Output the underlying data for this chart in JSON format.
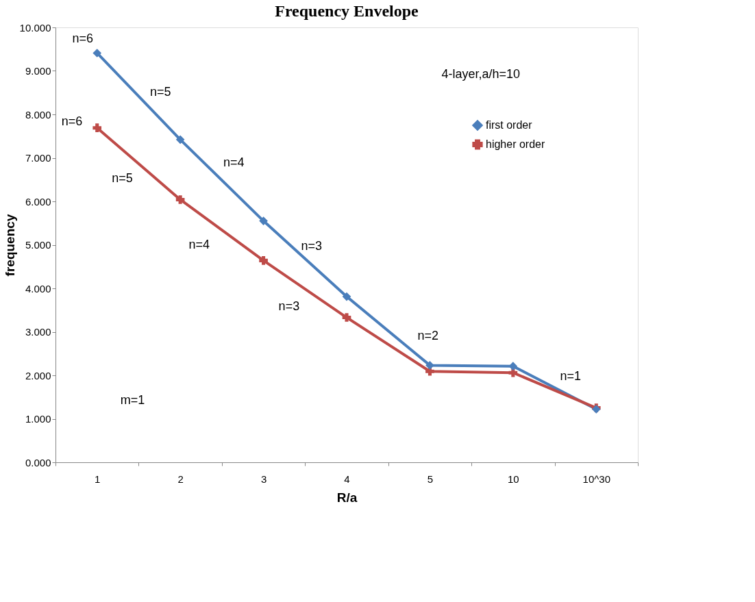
{
  "chart_data": {
    "type": "line",
    "title": "Frequency Envelope",
    "xlabel": "R/a",
    "ylabel": "frequency",
    "categories": [
      "1",
      "2",
      "3",
      "4",
      "5",
      "10",
      "10^30"
    ],
    "series": [
      {
        "name": "first order",
        "color": "#4a7ebb",
        "marker": "diamond",
        "values": [
          9.41,
          7.42,
          5.55,
          3.81,
          2.23,
          2.21,
          1.22
        ]
      },
      {
        "name": "higher order",
        "color": "#be4b48",
        "marker": "cross",
        "values": [
          7.69,
          6.04,
          4.64,
          3.33,
          2.09,
          2.06,
          1.25
        ]
      }
    ],
    "ylim": [
      0,
      10
    ],
    "yticks": [
      {
        "value": 0,
        "label": "0.000"
      },
      {
        "value": 1,
        "label": "1.000"
      },
      {
        "value": 2,
        "label": "2.000"
      },
      {
        "value": 3,
        "label": "3.000"
      },
      {
        "value": 4,
        "label": "4.000"
      },
      {
        "value": 5,
        "label": "5.000"
      },
      {
        "value": 6,
        "label": "6.000"
      },
      {
        "value": 7,
        "label": "7.000"
      },
      {
        "value": 8,
        "label": "8.000"
      },
      {
        "value": 9,
        "label": "9.000"
      },
      {
        "value": 10,
        "label": "10.000"
      }
    ],
    "annotations": [
      "4-layer,a/h=10",
      "n=6",
      "n=5",
      "n=4",
      "n=3",
      "n=2",
      "n=1",
      "n=6",
      "n=5",
      "n=4",
      "n=3",
      "m=1"
    ],
    "legend": "top right",
    "grid": false,
    "line_style": "solid"
  }
}
